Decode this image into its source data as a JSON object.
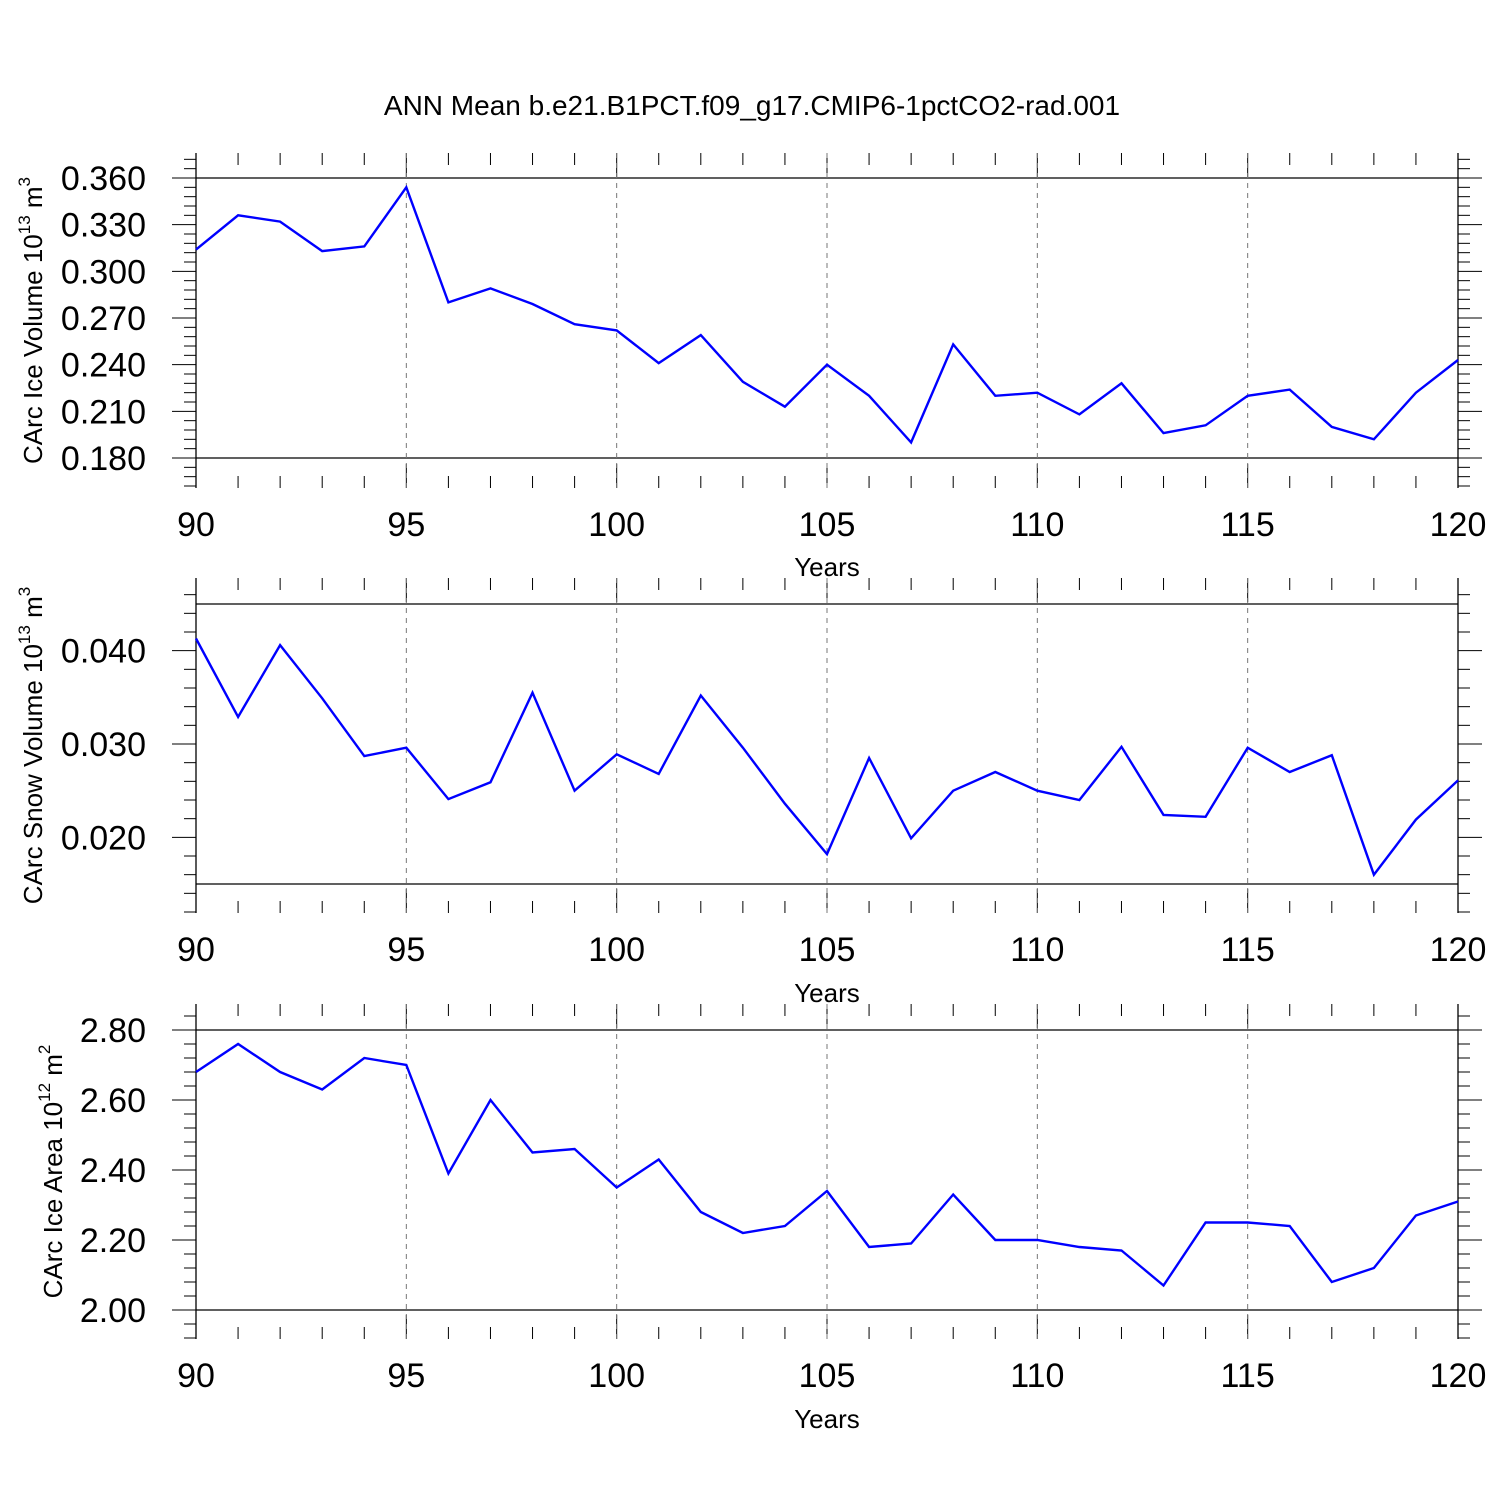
{
  "title": "ANN Mean b.e21.B1PCT.f09_g17.CMIP6-1pctCO2-rad.001",
  "colors": {
    "line": "#0000ff",
    "axis": "#000000",
    "grid": "#777777"
  },
  "chart_data": [
    {
      "type": "line",
      "xlabel": "Years",
      "ylabel": {
        "text": "CArc Ice Volume 10",
        "exp": "13",
        "unit": " m",
        "unit_exp": "3"
      },
      "xlim": [
        90,
        120
      ],
      "ylim": [
        0.18,
        0.36
      ],
      "x_ticks": [
        "90",
        "95",
        "100",
        "105",
        "110",
        "115",
        "120"
      ],
      "y_ticks": [
        "0.360",
        "0.330",
        "0.300",
        "0.270",
        "0.240",
        "0.210",
        "0.180"
      ],
      "vertical_grid": "dashed at major x ticks",
      "x": [
        90,
        91,
        92,
        93,
        94,
        95,
        96,
        97,
        98,
        99,
        100,
        101,
        102,
        103,
        104,
        105,
        106,
        107,
        108,
        109,
        110,
        111,
        112,
        113,
        114,
        115,
        116,
        117,
        118,
        119,
        120
      ],
      "values": [
        0.314,
        0.336,
        0.332,
        0.313,
        0.316,
        0.354,
        0.28,
        0.289,
        0.279,
        0.266,
        0.262,
        0.241,
        0.259,
        0.229,
        0.213,
        0.24,
        0.22,
        0.19,
        0.253,
        0.22,
        0.222,
        0.208,
        0.228,
        0.196,
        0.201,
        0.22,
        0.224,
        0.2,
        0.192,
        0.222,
        0.243
      ]
    },
    {
      "type": "line",
      "xlabel": "Years",
      "ylabel": {
        "text": "CArc Snow Volume 10",
        "exp": "13",
        "unit": " m",
        "unit_exp": "3"
      },
      "xlim": [
        90,
        120
      ],
      "ylim": [
        0.015,
        0.045
      ],
      "x_ticks": [
        "90",
        "95",
        "100",
        "105",
        "110",
        "115",
        "120"
      ],
      "y_ticks": [
        "0.040",
        "0.030",
        "0.020"
      ],
      "vertical_grid": "dashed at major x ticks",
      "x": [
        90,
        91,
        92,
        93,
        94,
        95,
        96,
        97,
        98,
        99,
        100,
        101,
        102,
        103,
        104,
        105,
        106,
        107,
        108,
        109,
        110,
        111,
        112,
        113,
        114,
        115,
        116,
        117,
        118,
        119,
        120
      ],
      "values": [
        0.0413,
        0.0329,
        0.0406,
        0.0349,
        0.0287,
        0.0296,
        0.0241,
        0.0259,
        0.0355,
        0.025,
        0.0289,
        0.0268,
        0.0352,
        0.0296,
        0.0236,
        0.0182,
        0.0285,
        0.0199,
        0.025,
        0.027,
        0.025,
        0.024,
        0.0297,
        0.0224,
        0.0222,
        0.0296,
        0.027,
        0.0288,
        0.016,
        0.0219,
        0.0261
      ]
    },
    {
      "type": "line",
      "xlabel": "Years",
      "ylabel": {
        "text": "CArc Ice Area 10",
        "exp": "12",
        "unit": " m",
        "unit_exp": "2"
      },
      "xlim": [
        90,
        120
      ],
      "ylim": [
        2.0,
        2.8
      ],
      "x_ticks": [
        "90",
        "95",
        "100",
        "105",
        "110",
        "115",
        "120"
      ],
      "y_ticks": [
        "2.80",
        "2.60",
        "2.40",
        "2.20",
        "2.00"
      ],
      "vertical_grid": "dashed at major x ticks",
      "x": [
        90,
        91,
        92,
        93,
        94,
        95,
        96,
        97,
        98,
        99,
        100,
        101,
        102,
        103,
        104,
        105,
        106,
        107,
        108,
        109,
        110,
        111,
        112,
        113,
        114,
        115,
        116,
        117,
        118,
        119,
        120
      ],
      "values": [
        2.68,
        2.76,
        2.68,
        2.63,
        2.72,
        2.7,
        2.39,
        2.6,
        2.45,
        2.46,
        2.35,
        2.43,
        2.28,
        2.22,
        2.24,
        2.34,
        2.18,
        2.19,
        2.33,
        2.2,
        2.2,
        2.18,
        2.17,
        2.07,
        2.25,
        2.25,
        2.24,
        2.08,
        2.12,
        2.27,
        2.31
      ]
    }
  ]
}
